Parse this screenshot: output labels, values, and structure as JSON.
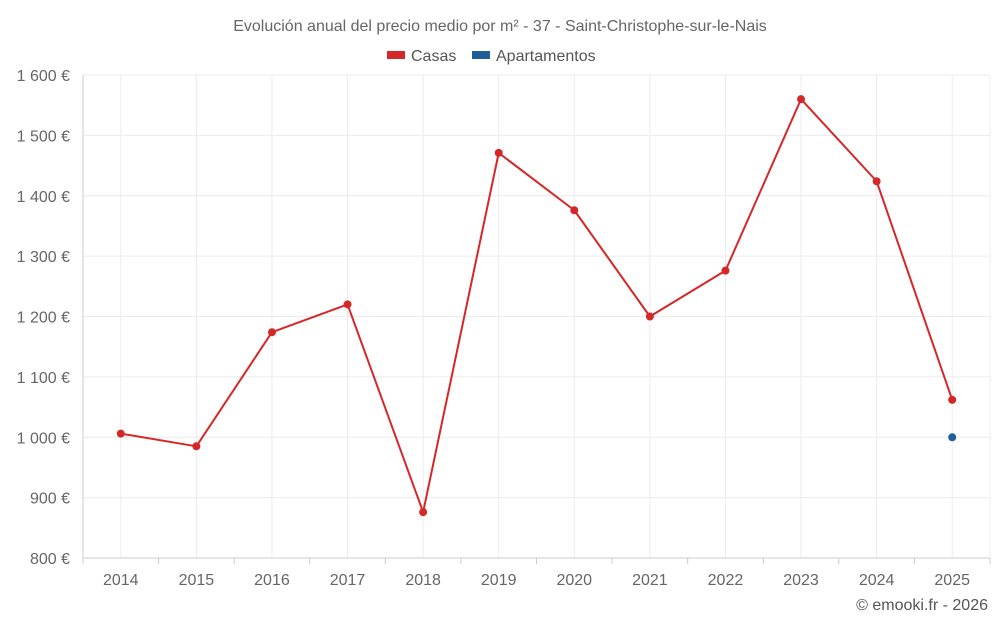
{
  "chart_data": {
    "type": "line",
    "title": "Evolución anual del precio medio por m² - 37 - Saint-Christophe-sur-le-Nais",
    "categories": [
      "2014",
      "2015",
      "2016",
      "2017",
      "2018",
      "2019",
      "2020",
      "2021",
      "2022",
      "2023",
      "2024",
      "2025"
    ],
    "series": [
      {
        "name": "Casas",
        "color": "#d62728",
        "values": [
          1006,
          985,
          1174,
          1220,
          876,
          1471,
          1376,
          1200,
          1276,
          1560,
          1424,
          1062
        ]
      },
      {
        "name": "Apartamentos",
        "color": "#1f5f99",
        "values": [
          null,
          null,
          null,
          null,
          null,
          null,
          null,
          null,
          null,
          null,
          null,
          1000
        ]
      }
    ],
    "ylim": [
      800,
      1600
    ],
    "yticks": [
      800,
      900,
      1000,
      1100,
      1200,
      1300,
      1400,
      1500,
      1600
    ],
    "ytick_labels": [
      "800 €",
      "900 €",
      "1 000 €",
      "1 100 €",
      "1 200 €",
      "1 300 €",
      "1 400 €",
      "1 500 €",
      "1 600 €"
    ],
    "xlabel": "",
    "ylabel": "",
    "grid": true,
    "legend_position": "top-center"
  },
  "credit": "© emooki.fr - 2026"
}
